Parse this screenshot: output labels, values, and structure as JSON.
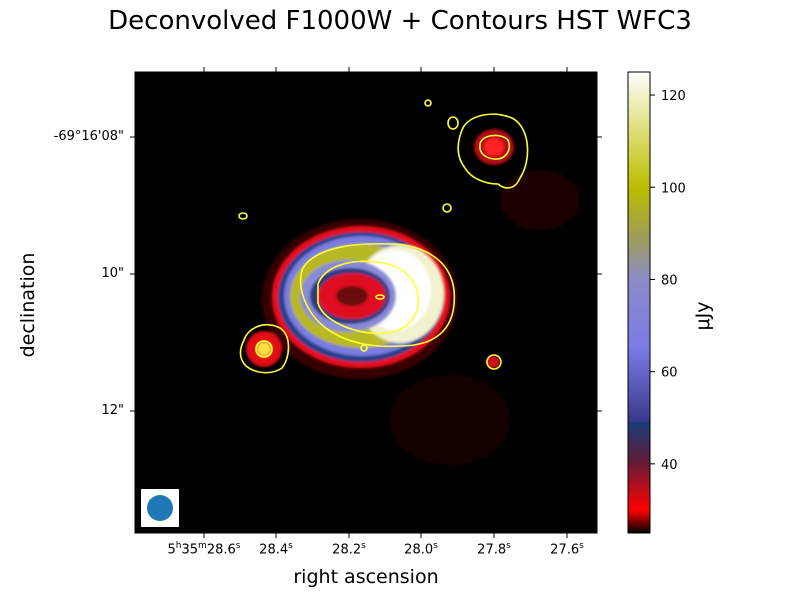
{
  "chart_data": {
    "type": "heatmap",
    "title": "Deconvolved F1000W + Contours HST WFC3",
    "xlabel": "right ascension",
    "ylabel": "declination",
    "x_ticks": [
      {
        "h": "5",
        "m": "35",
        "s": "28.6",
        "major": true
      },
      {
        "s": "28.4"
      },
      {
        "s": "28.2"
      },
      {
        "s": "28.0"
      },
      {
        "s": "27.8"
      },
      {
        "s": "27.6"
      }
    ],
    "y_ticks": [
      "-69°16'08\"",
      "10\"",
      "12\""
    ],
    "colorbar": {
      "label": "μJy",
      "range": [
        25,
        125
      ],
      "ticks": [
        "40",
        "60",
        "80",
        "100",
        "120"
      ],
      "tick_values": [
        40,
        60,
        80,
        100,
        120
      ]
    },
    "colormap_stops": [
      {
        "v": 25,
        "c": "#000000"
      },
      {
        "v": 30,
        "c": "#ff0000"
      },
      {
        "v": 41,
        "c": "#5a1d3a"
      },
      {
        "v": 49,
        "c": "#1a3c78"
      },
      {
        "v": 49.3,
        "c": "#3a3a8c"
      },
      {
        "v": 65,
        "c": "#7a7ae6"
      },
      {
        "v": 80,
        "c": "#8c8cc8"
      },
      {
        "v": 90,
        "c": "#a0a050"
      },
      {
        "v": 100,
        "c": "#bcbc00"
      },
      {
        "v": 113,
        "c": "#e0e080"
      },
      {
        "v": 125,
        "c": "#ffffff"
      }
    ],
    "contour_color": "#ffff33",
    "beam_color": "#1f77b4"
  }
}
